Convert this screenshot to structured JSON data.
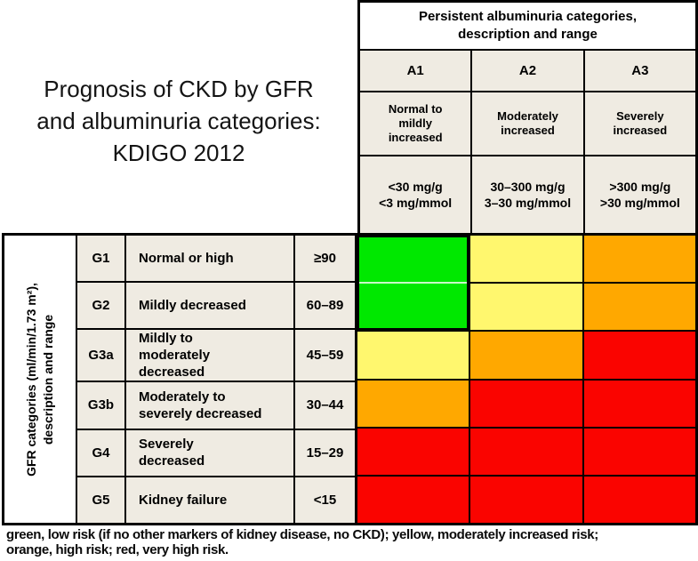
{
  "figure": {
    "title_lines": [
      "Prognosis of CKD by GFR",
      "and albuminuria categories:",
      "KDIGO 2012"
    ]
  },
  "albuminuria": {
    "header_lines": [
      "Persistent albuminuria categories,",
      "description and range"
    ],
    "columns": [
      {
        "code": "A1",
        "description": "Normal to mildly increased",
        "range_lines": [
          "<30 mg/g",
          "<3 mg/mmol"
        ]
      },
      {
        "code": "A2",
        "description": "Moderately increased",
        "range_lines": [
          "30–300 mg/g",
          "3–30 mg/mmol"
        ]
      },
      {
        "code": "A3",
        "description": "Severely increased",
        "range_lines": [
          ">300 mg/g",
          ">30 mg/mmol"
        ]
      }
    ]
  },
  "gfr": {
    "axis_label_lines": [
      "GFR categories (ml/min/1.73 m²),",
      "description and range"
    ],
    "rows": [
      {
        "code": "G1",
        "description": "Normal or high",
        "range": "≥90"
      },
      {
        "code": "G2",
        "description": "Mildly decreased",
        "range": "60–89"
      },
      {
        "code": "G3a",
        "description": "Mildly to moderately decreased",
        "range": "45–59"
      },
      {
        "code": "G3b",
        "description": "Moderately to severely decreased",
        "range": "30–44"
      },
      {
        "code": "G4",
        "description": "Severely decreased",
        "range": "15–29"
      },
      {
        "code": "G5",
        "description": "Kidney failure",
        "range": "<15"
      }
    ]
  },
  "caption": {
    "lines": [
      "green, low risk (if no other markers of kidney disease, no CKD); yellow, moderately increased risk;",
      "orange, high risk; red, very high risk."
    ]
  },
  "chart_data": {
    "type": "heatmap",
    "title": "Prognosis of CKD by GFR and albuminuria categories: KDIGO 2012",
    "x_categories": [
      "A1",
      "A2",
      "A3"
    ],
    "x_category_descriptions": [
      "Normal to mildly increased (<30 mg/g, <3 mg/mmol)",
      "Moderately increased (30–300 mg/g, 3–30 mg/mmol)",
      "Severely increased (>300 mg/g, >30 mg/mmol)"
    ],
    "y_categories": [
      "G1",
      "G2",
      "G3a",
      "G3b",
      "G4",
      "G5"
    ],
    "y_category_descriptions": [
      "Normal or high (≥90)",
      "Mildly decreased (60–89)",
      "Mildly to moderately decreased (45–59)",
      "Moderately to severely decreased (30–44)",
      "Severely decreased (15–29)",
      "Kidney failure (<15)"
    ],
    "values": [
      [
        "green",
        "yellow",
        "orange"
      ],
      [
        "green",
        "yellow",
        "orange"
      ],
      [
        "yellow",
        "orange",
        "red"
      ],
      [
        "orange",
        "red",
        "red"
      ],
      [
        "red",
        "red",
        "red"
      ],
      [
        "red",
        "red",
        "red"
      ]
    ],
    "risk_levels": {
      "green": "low risk",
      "yellow": "moderately increased risk",
      "orange": "high risk",
      "red": "very high risk"
    },
    "colors": {
      "green": "#00e800",
      "yellow": "#fff76e",
      "orange": "#ffa800",
      "red": "#fa0400",
      "header_beige": "#efebe2",
      "border": "#000000",
      "green_divider": "#c9f8c9"
    },
    "merged_block": {
      "col": 0,
      "rows": [
        0,
        1
      ]
    }
  }
}
